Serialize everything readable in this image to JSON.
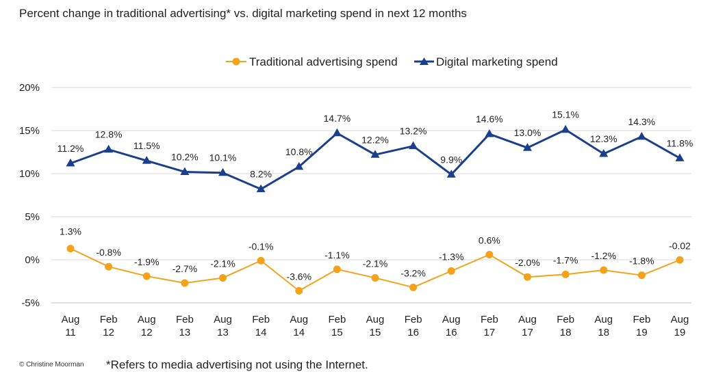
{
  "title": "Percent change in traditional advertising* vs. digital marketing spend in next 12 months",
  "footnote": "*Refers to media advertising not using the Internet.",
  "copyright": "© Christine Moorman",
  "colors": {
    "traditional": "#f4a21c",
    "digital": "#1b3f8b",
    "grid": "#d9d9d9",
    "axis": "#bfbfbf"
  },
  "chart_data": {
    "type": "line",
    "title": "Percent change in traditional advertising* vs. digital marketing spend in next 12 months",
    "categories": [
      [
        "Aug",
        "11"
      ],
      [
        "Feb",
        "12"
      ],
      [
        "Aug",
        "12"
      ],
      [
        "Feb",
        "13"
      ],
      [
        "Aug",
        "13"
      ],
      [
        "Feb",
        "14"
      ],
      [
        "Aug",
        "14"
      ],
      [
        "Feb",
        "15"
      ],
      [
        "Aug",
        "15"
      ],
      [
        "Feb",
        "16"
      ],
      [
        "Aug",
        "16"
      ],
      [
        "Feb",
        "17"
      ],
      [
        "Aug",
        "17"
      ],
      [
        "Feb",
        "18"
      ],
      [
        "Aug",
        "18"
      ],
      [
        "Feb",
        "19"
      ],
      [
        "Aug",
        "19"
      ]
    ],
    "ylim": [
      -5,
      20
    ],
    "yticks": [
      20,
      15,
      10,
      5,
      0,
      -5
    ],
    "ytick_labels": [
      "20%",
      "15%",
      "10%",
      "5%",
      "0%",
      "-5%"
    ],
    "legend_position": "top-center",
    "grid": true,
    "series": [
      {
        "name": "Traditional advertising spend",
        "marker": "circle",
        "color": "#f4a21c",
        "values": [
          1.3,
          -0.8,
          -1.9,
          -2.7,
          -2.1,
          -0.1,
          -3.6,
          -1.1,
          -2.1,
          -3.2,
          -1.3,
          0.6,
          -2.0,
          -1.7,
          -1.2,
          -1.8,
          -0.02
        ],
        "labels": [
          "1.3%",
          "-0.8%",
          "-1.9%",
          "-2.7%",
          "-2.1%",
          "-0.1%",
          "-3.6%",
          "-1.1%",
          "-2.1%",
          "-3.2%",
          "-1.3%",
          "0.6%",
          "-2.0%",
          "-1.7%",
          "-1.2%",
          "-1.8%",
          "-0.02"
        ]
      },
      {
        "name": "Digital marketing spend",
        "marker": "triangle",
        "color": "#1b3f8b",
        "values": [
          11.2,
          12.8,
          11.5,
          10.2,
          10.1,
          8.2,
          10.8,
          14.7,
          12.2,
          13.2,
          9.9,
          14.6,
          13.0,
          15.1,
          12.3,
          14.3,
          11.8
        ],
        "labels": [
          "11.2%",
          "12.8%",
          "11.5%",
          "10.2%",
          "10.1%",
          "8.2%",
          "10.8%",
          "14.7%",
          "12.2%",
          "13.2%",
          "9.9%",
          "14.6%",
          "13.0%",
          "15.1%",
          "12.3%",
          "14.3%",
          "11.8%"
        ]
      }
    ]
  }
}
